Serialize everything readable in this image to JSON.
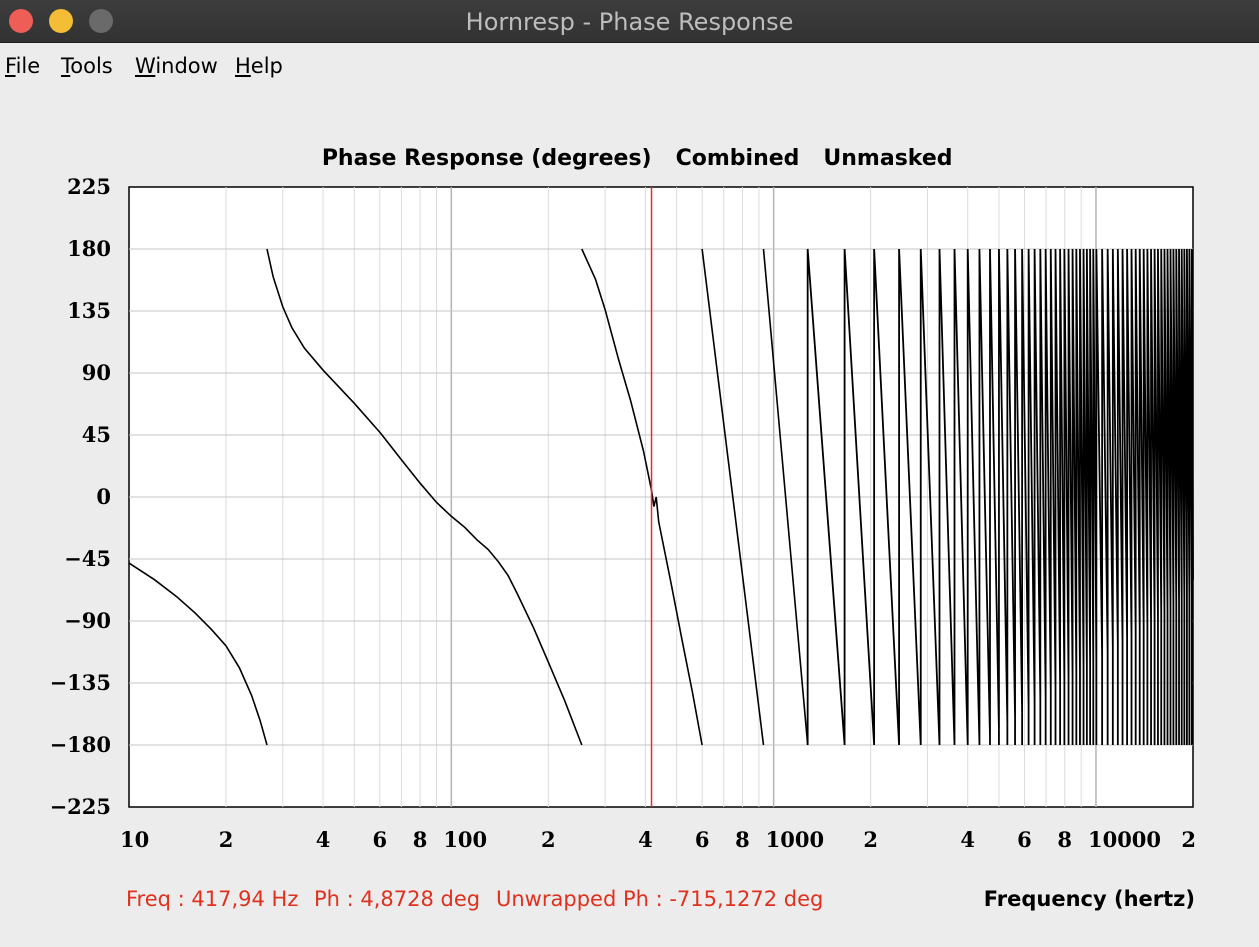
{
  "window": {
    "title": "Hornresp - Phase Response",
    "colors": {
      "close": "#ee5e57",
      "minimize": "#f3bd36",
      "maximize": "#6a6a6a"
    }
  },
  "menu": [
    {
      "accel": "F",
      "rest": "ile"
    },
    {
      "accel": "T",
      "rest": "ools"
    },
    {
      "accel": "W",
      "rest": "indow"
    },
    {
      "accel": "H",
      "rest": "elp"
    }
  ],
  "chart_header": {
    "title": "Phase Response (degrees)",
    "mode": "Combined",
    "mask": "Unmasked"
  },
  "status": {
    "freq": "Freq : 417,94 Hz",
    "phase": "Ph : 4,8728 deg",
    "unwrapped": "Unwrapped Ph : -715,1272 deg",
    "color": "#e0301e"
  },
  "chart_data": {
    "type": "line",
    "title": "Phase Response (degrees)",
    "xlabel": "Frequency (hertz)",
    "ylabel": "",
    "xscale": "log",
    "xlim": [
      10,
      20000
    ],
    "ylim": [
      -225,
      225
    ],
    "yticks": [
      225,
      180,
      135,
      90,
      45,
      0,
      -45,
      -90,
      -135,
      -180,
      -225
    ],
    "ytick_labels": [
      "225",
      "180",
      "135",
      "90",
      "45",
      "0",
      "−45",
      "−90",
      "−135",
      "−180",
      "−225"
    ],
    "xtick_labels": [
      {
        "f": 10,
        "label": "10"
      },
      {
        "f": 20,
        "label": "2"
      },
      {
        "f": 40,
        "label": "4"
      },
      {
        "f": 60,
        "label": "6"
      },
      {
        "f": 80,
        "label": "8"
      },
      {
        "f": 100,
        "label": "100"
      },
      {
        "f": 200,
        "label": "2"
      },
      {
        "f": 400,
        "label": "4"
      },
      {
        "f": 600,
        "label": "6"
      },
      {
        "f": 800,
        "label": "8"
      },
      {
        "f": 1000,
        "label": "1000"
      },
      {
        "f": 2000,
        "label": "2"
      },
      {
        "f": 4000,
        "label": "4"
      },
      {
        "f": 6000,
        "label": "6"
      },
      {
        "f": 8000,
        "label": "8"
      },
      {
        "f": 10000,
        "label": "10000"
      },
      {
        "f": 20000,
        "label": "2"
      }
    ],
    "grid": true,
    "cursor_frequency": 417.94,
    "cursor_color": "#e0301e",
    "line_color": "#000000",
    "series": [
      {
        "segments": [
          [
            [
              10,
              -48
            ],
            [
              12,
              -60
            ],
            [
              14,
              -72
            ],
            [
              16,
              -84
            ],
            [
              18,
              -96
            ],
            [
              20,
              -108
            ],
            [
              22,
              -124
            ],
            [
              24,
              -144
            ],
            [
              25.5,
              -162
            ],
            [
              26.8,
              -180
            ]
          ],
          [
            [
              26.8,
              180
            ],
            [
              28,
              160
            ],
            [
              30,
              138
            ],
            [
              32,
              123
            ],
            [
              35,
              108
            ],
            [
              40,
              92
            ],
            [
              50,
              68
            ],
            [
              60,
              47
            ],
            [
              70,
              27
            ],
            [
              80,
              10
            ],
            [
              90,
              -4
            ],
            [
              100,
              -14
            ],
            [
              110,
              -22
            ],
            [
              120,
              -31
            ],
            [
              130,
              -38
            ],
            [
              140,
              -47
            ],
            [
              150,
              -57
            ],
            [
              160,
              -70
            ],
            [
              180,
              -95
            ],
            [
              200,
              -120
            ],
            [
              225,
              -148
            ],
            [
              254,
              -180
            ]
          ],
          [
            [
              254,
              180
            ],
            [
              280,
              158
            ],
            [
              300,
              136
            ],
            [
              330,
              100
            ],
            [
              360,
              70
            ],
            [
              395,
              33
            ],
            [
              417.94,
              4.9
            ],
            [
              425,
              -7
            ],
            [
              432,
              0
            ],
            [
              440,
              -18
            ],
            [
              480,
              -62
            ],
            [
              520,
              -104
            ],
            [
              560,
              -142
            ],
            [
              600,
              -180
            ]
          ],
          [
            [
              600,
              180
            ],
            [
              930,
              -180
            ]
          ],
          [
            [
              930,
              180
            ],
            [
              1275,
              -180
            ]
          ]
        ],
        "dense_region": {
          "from": 1275,
          "to": 20000,
          "note": "rapid phase wraps between -180 and 180",
          "wrap_frequencies": [
            1660,
            2050,
            2450,
            2860,
            3270,
            3640,
            4000,
            4350,
            4690,
            5000,
            5310,
            5610,
            5900,
            6180,
            6450,
            6720,
            6980,
            7240,
            7490,
            7740,
            7980,
            8220,
            8460,
            8690,
            8920,
            9150,
            9370,
            9590,
            9810,
            10030,
            10450,
            10870,
            11280,
            11690,
            12090,
            12490,
            12890,
            13280,
            13670,
            14060,
            14440,
            14820,
            15200,
            15570,
            15940,
            16310,
            16670,
            17030,
            17390,
            17750,
            18100,
            18450,
            18800,
            19150,
            19490,
            19830
          ]
        }
      }
    ]
  }
}
